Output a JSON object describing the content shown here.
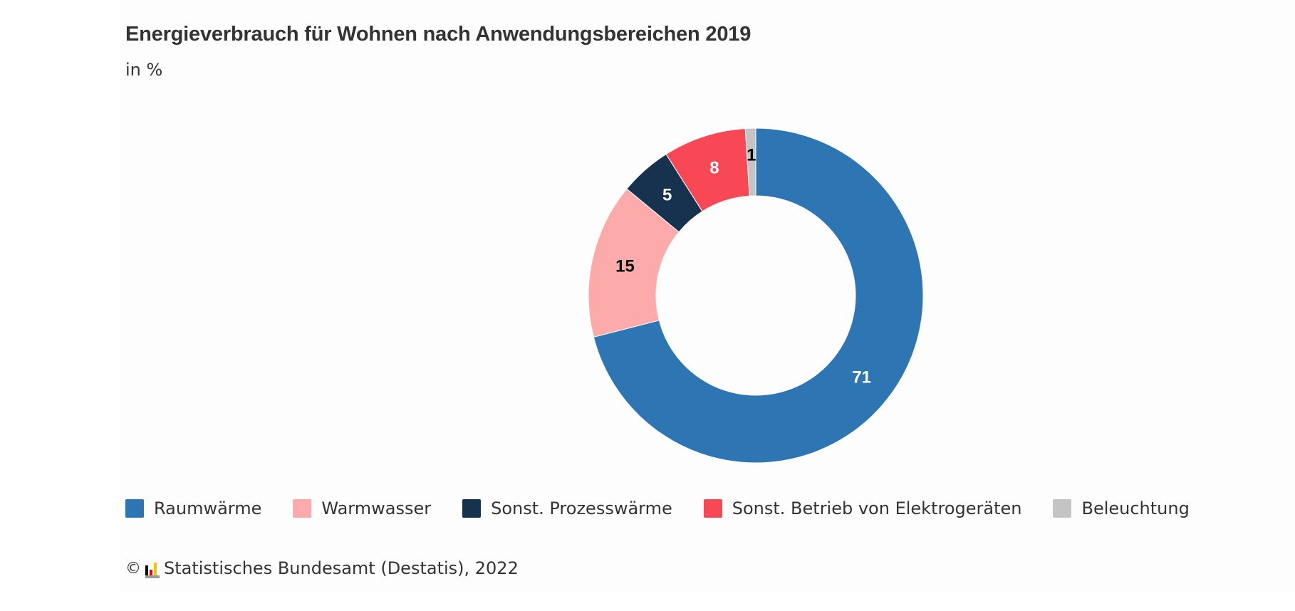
{
  "header": {
    "title": "Energieverbrauch für Wohnen nach Anwendungsbereichen 2019",
    "subtitle": "in %"
  },
  "chart_data": {
    "type": "pie",
    "variant": "donut",
    "title": "Energieverbrauch für Wohnen nach Anwendungsbereichen 2019",
    "unit": "in %",
    "categories": [
      "Raumwärme",
      "Warmwasser",
      "Sonst. Prozesswärme",
      "Sonst. Betrieb von Elektrogeräten",
      "Beleuchtung"
    ],
    "values": [
      71,
      15,
      5,
      8,
      1
    ],
    "colors": [
      "#2e75b4",
      "#fcaaaa",
      "#17324f",
      "#f84855",
      "#c4c4c4"
    ],
    "label_colors": [
      "#ffffff",
      "#000000",
      "#ffffff",
      "#ffffff",
      "#000000"
    ],
    "start": "top",
    "direction": "clockwise",
    "legend_position": "bottom"
  },
  "legend": {
    "items": [
      {
        "label": "Raumwärme",
        "color": "#2e75b4"
      },
      {
        "label": "Warmwasser",
        "color": "#fcaaaa"
      },
      {
        "label": "Sonst. Prozesswärme",
        "color": "#17324f"
      },
      {
        "label": "Sonst. Betrieb von Elektrogeräten",
        "color": "#f84855"
      },
      {
        "label": "Beleuchtung",
        "color": "#c4c4c4"
      }
    ]
  },
  "footer": {
    "copyright_symbol": "©",
    "logo_icon": "destatis-logo-icon",
    "source": "Statistisches Bundesamt (Destatis), 2022"
  }
}
